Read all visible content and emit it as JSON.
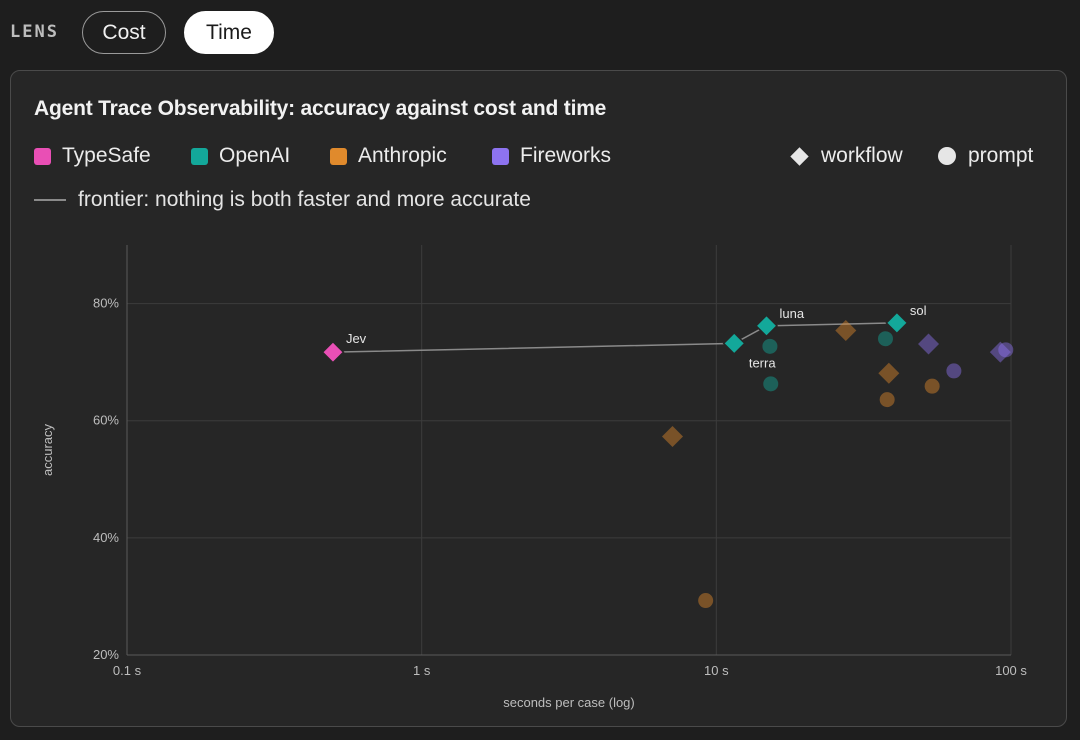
{
  "lens": {
    "label": "LENS",
    "options": [
      {
        "label": "Cost",
        "selected": false
      },
      {
        "label": "Time",
        "selected": true
      }
    ]
  },
  "colors": {
    "TypeSafe": "#e94fb5",
    "OpenAI": "#13a89a",
    "Anthropic": "#e08a2c",
    "Fireworks": "#8d73f0"
  },
  "chart_data": {
    "type": "scatter",
    "title": "Agent Trace Observability: accuracy against cost and time",
    "xlabel": "seconds per case (log)",
    "ylabel": "accuracy",
    "x_scale": "log",
    "xlim": [
      0.1,
      100
    ],
    "ylim": [
      20,
      90
    ],
    "x_ticks": [
      {
        "value": 0.1,
        "label": "0.1 s"
      },
      {
        "value": 1,
        "label": "1 s"
      },
      {
        "value": 10,
        "label": "10 s"
      },
      {
        "value": 100,
        "label": "100 s"
      }
    ],
    "y_ticks": [
      {
        "value": 20,
        "label": "20%"
      },
      {
        "value": 40,
        "label": "40%"
      },
      {
        "value": 60,
        "label": "60%"
      },
      {
        "value": 80,
        "label": "80%"
      }
    ],
    "grid": true,
    "legend": {
      "providers": [
        "TypeSafe",
        "OpenAI",
        "Anthropic",
        "Fireworks"
      ],
      "shapes": [
        {
          "name": "workflow",
          "shape": "diamond"
        },
        {
          "name": "prompt",
          "shape": "circle"
        }
      ],
      "frontier_label": "frontier: nothing is both faster and more accurate"
    },
    "points": [
      {
        "provider": "TypeSafe",
        "shape": "workflow",
        "x": 0.5,
        "y": 71.7,
        "label": "Jev",
        "frontier": true
      },
      {
        "provider": "OpenAI",
        "shape": "workflow",
        "x": 11.5,
        "y": 73.2,
        "label": "terra",
        "frontier": true
      },
      {
        "provider": "OpenAI",
        "shape": "workflow",
        "x": 14.8,
        "y": 76.2,
        "label": "luna",
        "frontier": true
      },
      {
        "provider": "OpenAI",
        "shape": "workflow",
        "x": 41,
        "y": 76.7,
        "label": "sol",
        "frontier": true
      },
      {
        "provider": "OpenAI",
        "shape": "prompt",
        "x": 15.2,
        "y": 72.7
      },
      {
        "provider": "OpenAI",
        "shape": "prompt",
        "x": 15.3,
        "y": 66.3
      },
      {
        "provider": "OpenAI",
        "shape": "prompt",
        "x": 37.5,
        "y": 74.0
      },
      {
        "provider": "Anthropic",
        "shape": "workflow",
        "x": 7.1,
        "y": 57.3
      },
      {
        "provider": "Anthropic",
        "shape": "workflow",
        "x": 27.5,
        "y": 75.4
      },
      {
        "provider": "Anthropic",
        "shape": "workflow",
        "x": 38.5,
        "y": 68.1
      },
      {
        "provider": "Anthropic",
        "shape": "prompt",
        "x": 9.2,
        "y": 29.3
      },
      {
        "provider": "Anthropic",
        "shape": "prompt",
        "x": 38,
        "y": 63.6
      },
      {
        "provider": "Anthropic",
        "shape": "prompt",
        "x": 54,
        "y": 65.9
      },
      {
        "provider": "Fireworks",
        "shape": "workflow",
        "x": 52.5,
        "y": 73.1
      },
      {
        "provider": "Fireworks",
        "shape": "workflow",
        "x": 92,
        "y": 71.7
      },
      {
        "provider": "Fireworks",
        "shape": "prompt",
        "x": 64,
        "y": 68.5
      },
      {
        "provider": "Fireworks",
        "shape": "prompt",
        "x": 96,
        "y": 72.1
      }
    ]
  }
}
